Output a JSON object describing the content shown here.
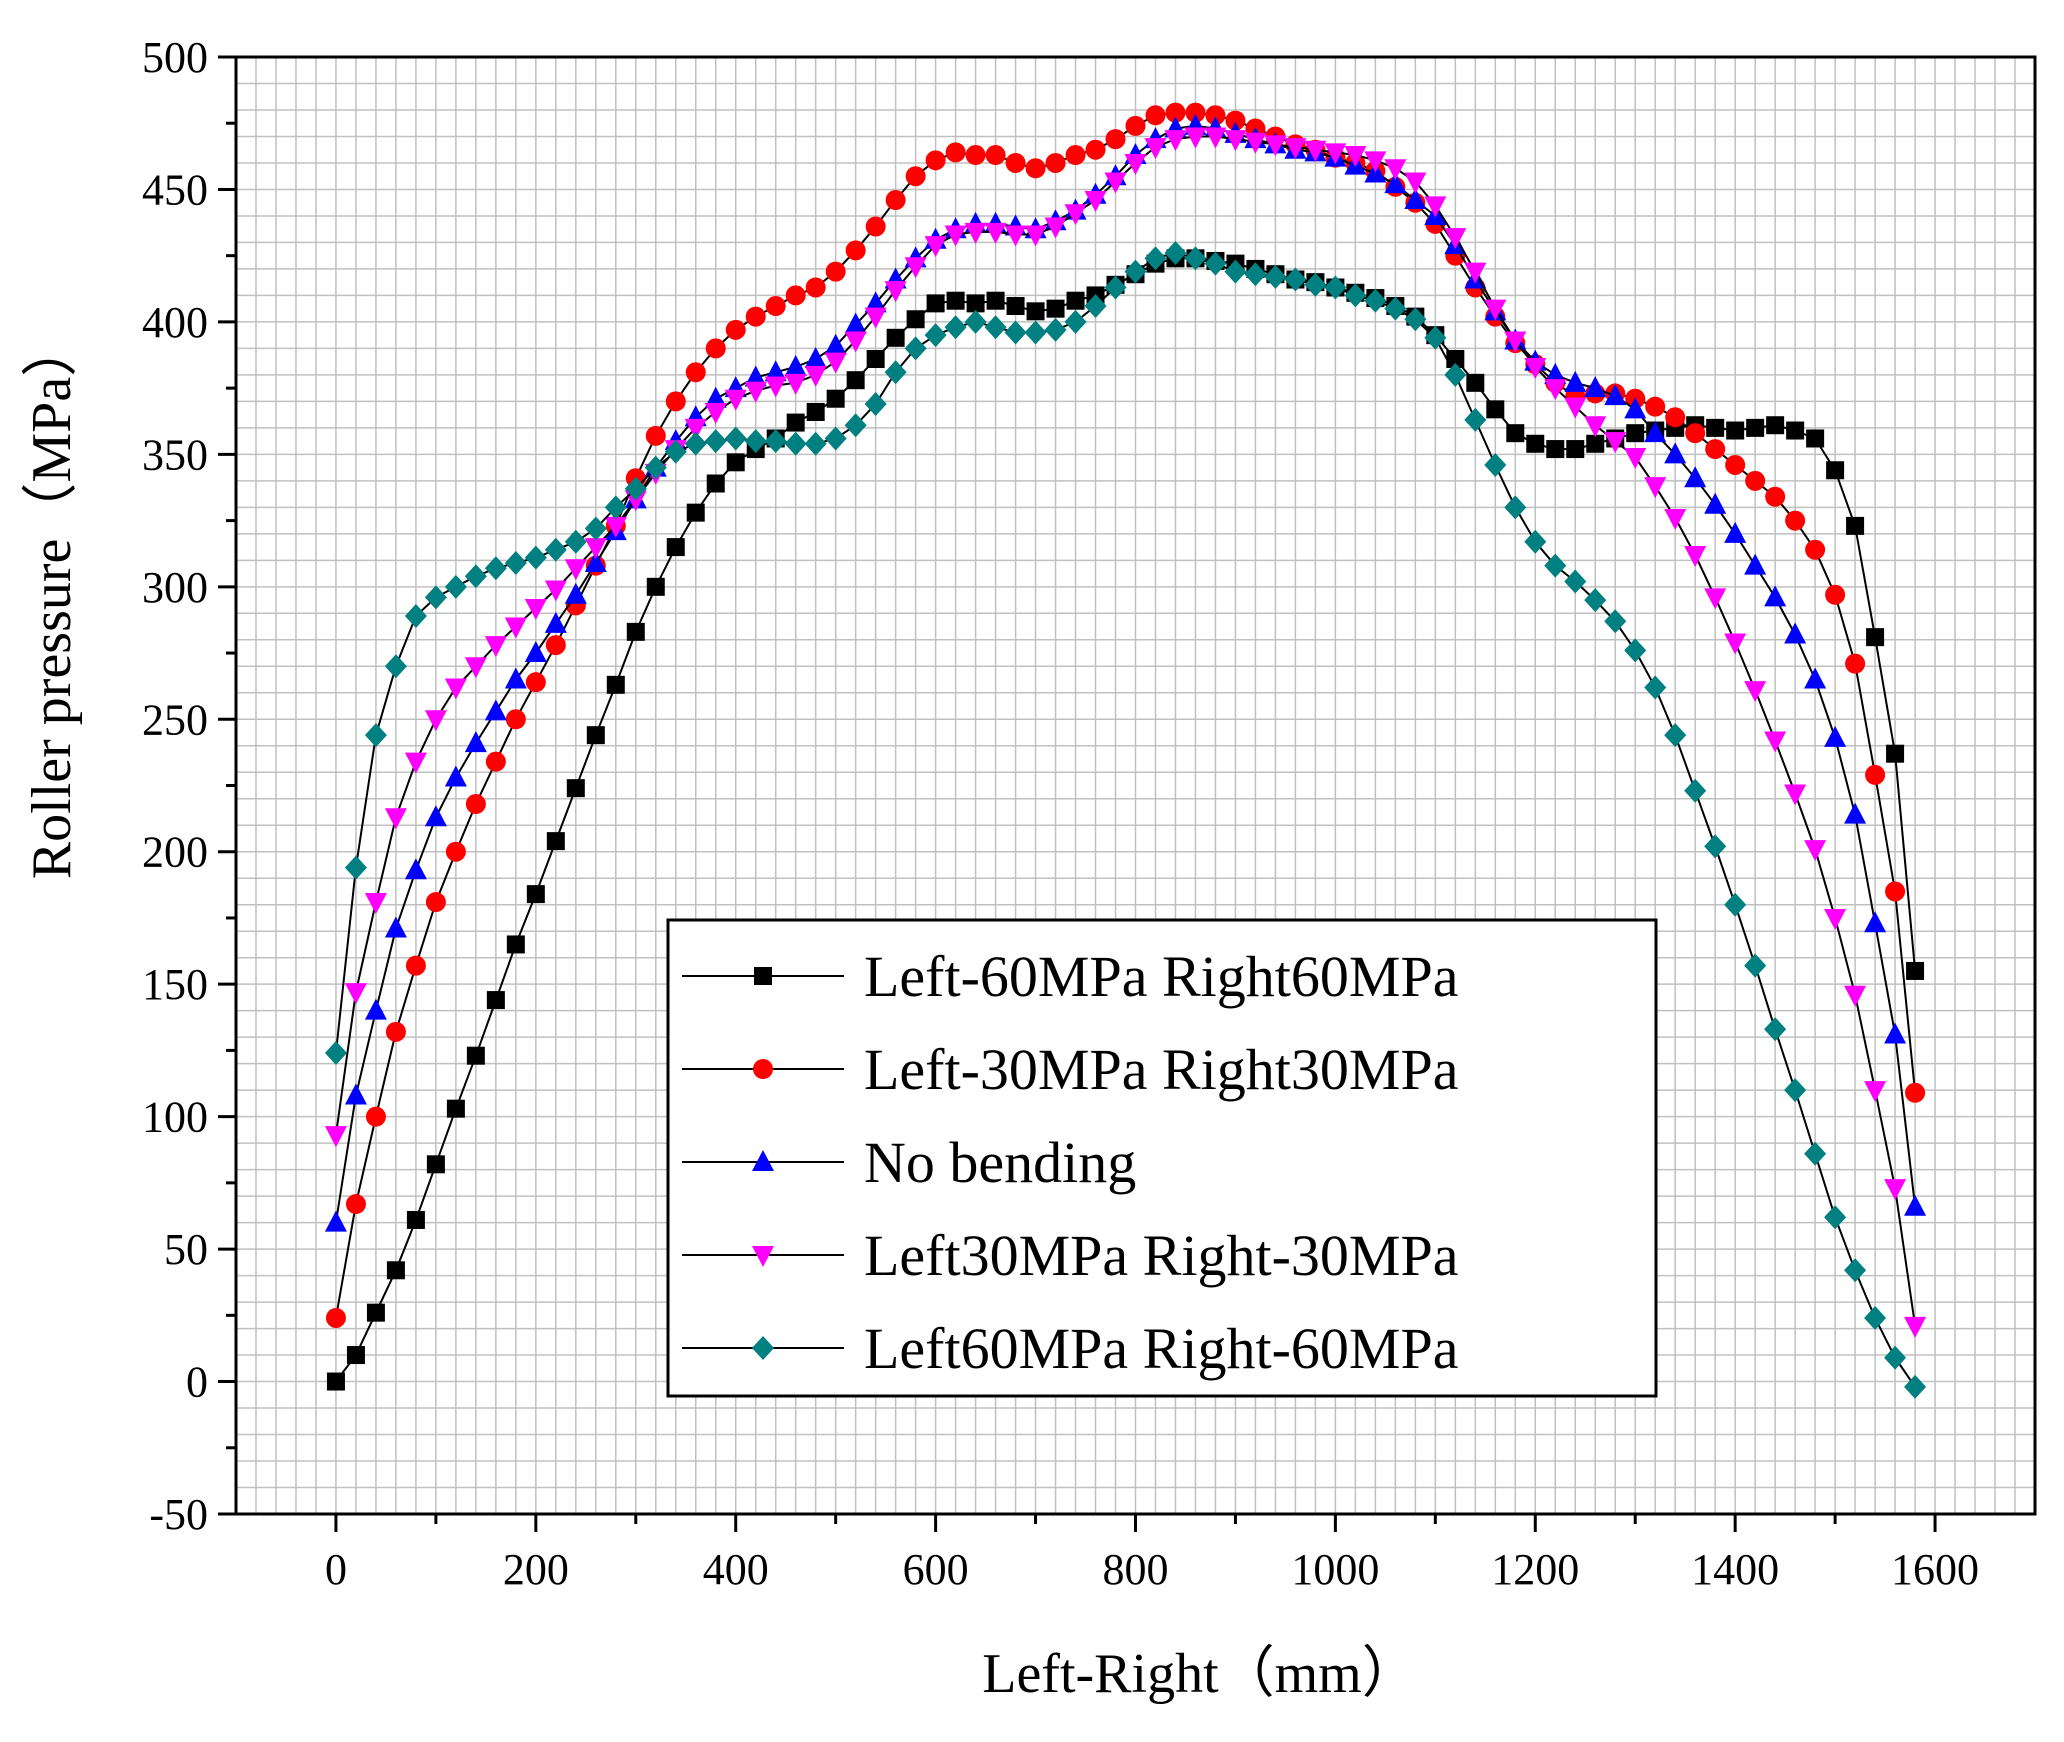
{
  "chart_data": {
    "type": "line",
    "title": "",
    "xlabel": "Left-Right（mm）",
    "ylabel": "Roller pressure（MPa）",
    "xlim": [
      -100,
      1700
    ],
    "ylim": [
      -50,
      500
    ],
    "xticks": [
      0,
      200,
      400,
      600,
      800,
      1000,
      1200,
      1400,
      1600
    ],
    "xtick_labels": [
      "0",
      "200",
      "400",
      "600",
      "800",
      "1000",
      "1200",
      "1400",
      "1600"
    ],
    "yticks": [
      -50,
      0,
      50,
      100,
      150,
      200,
      250,
      300,
      350,
      400,
      450,
      500
    ],
    "ytick_labels": [
      "-50",
      "0",
      "50",
      "100",
      "150",
      "200",
      "250",
      "300",
      "350",
      "400",
      "450",
      "500"
    ],
    "grid": true,
    "legend_position": "bottom-center",
    "x": [
      0,
      20,
      40,
      60,
      80,
      100,
      120,
      140,
      160,
      180,
      200,
      220,
      240,
      260,
      280,
      300,
      320,
      340,
      360,
      380,
      400,
      420,
      440,
      460,
      480,
      500,
      520,
      540,
      560,
      580,
      600,
      620,
      640,
      660,
      680,
      700,
      720,
      740,
      760,
      780,
      800,
      820,
      840,
      860,
      880,
      900,
      920,
      940,
      960,
      980,
      1000,
      1020,
      1040,
      1060,
      1080,
      1100,
      1120,
      1140,
      1160,
      1180,
      1200,
      1220,
      1240,
      1260,
      1280,
      1300,
      1320,
      1340,
      1360,
      1380,
      1400,
      1420,
      1440,
      1460,
      1480,
      1500,
      1520,
      1540,
      1560,
      1580
    ],
    "series": [
      {
        "name": "Left-60MPa Right60MPa",
        "color": "#000000",
        "marker": "square",
        "values": [
          0,
          10,
          26,
          42,
          61,
          82,
          103,
          123,
          144,
          165,
          184,
          204,
          224,
          244,
          263,
          283,
          300,
          315,
          328,
          339,
          347,
          352,
          356,
          362,
          366,
          371,
          378,
          386,
          394,
          401,
          407,
          408,
          407,
          408,
          406,
          404,
          405,
          408,
          410,
          414,
          418,
          422,
          424,
          424,
          423,
          422,
          420,
          418,
          416,
          415,
          413,
          411,
          409,
          406,
          402,
          395,
          386,
          377,
          367,
          358,
          354,
          352,
          352,
          354,
          356,
          358,
          359,
          360,
          361,
          360,
          359,
          360,
          361,
          359,
          356,
          344,
          323,
          281,
          237,
          155
        ]
      },
      {
        "name": "Left-30MPa Right30MPa",
        "color": "#ff0000",
        "marker": "circle",
        "values": [
          24,
          67,
          100,
          132,
          157,
          181,
          200,
          218,
          234,
          250,
          264,
          278,
          293,
          308,
          323,
          341,
          357,
          370,
          381,
          390,
          397,
          402,
          406,
          410,
          413,
          419,
          427,
          436,
          446,
          455,
          461,
          464,
          463,
          463,
          460,
          458,
          460,
          463,
          465,
          469,
          474,
          478,
          479,
          479,
          478,
          476,
          473,
          470,
          467,
          465,
          462,
          460,
          457,
          451,
          445,
          437,
          425,
          413,
          402,
          392,
          384,
          377,
          372,
          373,
          373,
          371,
          368,
          364,
          358,
          352,
          346,
          340,
          334,
          325,
          314,
          297,
          271,
          229,
          185,
          109
        ]
      },
      {
        "name": "No bending",
        "color": "#0000ff",
        "marker": "triangle-up",
        "values": [
          60,
          108,
          140,
          171,
          193,
          213,
          228,
          241,
          253,
          265,
          275,
          286,
          297,
          309,
          321,
          333,
          345,
          355,
          364,
          371,
          375,
          379,
          381,
          383,
          386,
          391,
          399,
          407,
          416,
          424,
          431,
          435,
          437,
          437,
          436,
          435,
          438,
          442,
          448,
          455,
          463,
          469,
          473,
          474,
          473,
          471,
          469,
          467,
          465,
          464,
          462,
          459,
          456,
          452,
          446,
          440,
          429,
          416,
          404,
          393,
          385,
          380,
          377,
          375,
          372,
          367,
          358,
          350,
          341,
          331,
          320,
          308,
          296,
          282,
          265,
          243,
          214,
          173,
          131,
          66
        ]
      },
      {
        "name": "Left30MPa Right-30MPa",
        "color": "#ff00ff",
        "marker": "triangle-down",
        "values": [
          93,
          147,
          181,
          213,
          234,
          250,
          262,
          270,
          278,
          285,
          292,
          299,
          307,
          315,
          323,
          333,
          343,
          352,
          360,
          366,
          371,
          374,
          376,
          377,
          380,
          385,
          393,
          402,
          412,
          421,
          429,
          433,
          434,
          434,
          433,
          433,
          436,
          441,
          446,
          453,
          460,
          466,
          469,
          470,
          470,
          469,
          468,
          467,
          466,
          465,
          464,
          463,
          461,
          458,
          453,
          444,
          432,
          419,
          405,
          393,
          383,
          375,
          368,
          361,
          355,
          349,
          338,
          326,
          312,
          296,
          279,
          261,
          242,
          222,
          201,
          175,
          146,
          110,
          73,
          21
        ]
      },
      {
        "name": "Left60MPa Right-60MPa",
        "color": "#008080",
        "marker": "diamond",
        "values": [
          124,
          194,
          244,
          270,
          289,
          296,
          300,
          304,
          307,
          309,
          311,
          314,
          317,
          322,
          330,
          337,
          345,
          351,
          354,
          355,
          356,
          355,
          355,
          354,
          354,
          356,
          361,
          369,
          381,
          390,
          395,
          398,
          400,
          398,
          396,
          396,
          397,
          400,
          406,
          413,
          419,
          424,
          426,
          424,
          422,
          419,
          418,
          417,
          416,
          414,
          413,
          410,
          408,
          405,
          401,
          394,
          380,
          363,
          346,
          330,
          317,
          308,
          302,
          295,
          287,
          276,
          262,
          244,
          223,
          202,
          180,
          157,
          133,
          110,
          86,
          62,
          42,
          24,
          9,
          -2
        ]
      }
    ]
  }
}
